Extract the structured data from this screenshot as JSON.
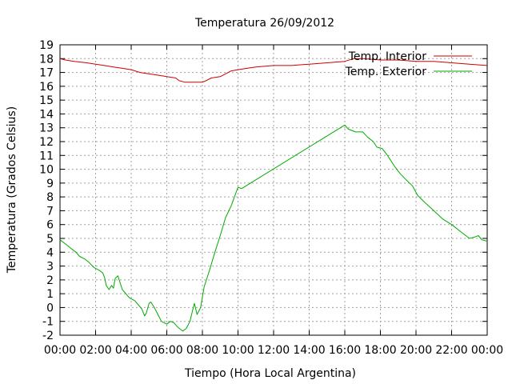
{
  "chart_data": {
    "type": "line",
    "title": "Temperatura 26/09/2012",
    "xlabel": "Tiempo (Hora Local Argentina)",
    "ylabel": "Temperatura (Grados Celsius)",
    "xlim": [
      0,
      24
    ],
    "ylim": [
      -2,
      19
    ],
    "grid": true,
    "legend_position": "top-right",
    "x_ticks": [
      {
        "value": 0,
        "label": "00:00"
      },
      {
        "value": 2,
        "label": "02:00"
      },
      {
        "value": 4,
        "label": "04:00"
      },
      {
        "value": 6,
        "label": "06:00"
      },
      {
        "value": 8,
        "label": "08:00"
      },
      {
        "value": 10,
        "label": "10:00"
      },
      {
        "value": 12,
        "label": "12:00"
      },
      {
        "value": 14,
        "label": "14:00"
      },
      {
        "value": 16,
        "label": "16:00"
      },
      {
        "value": 18,
        "label": "18:00"
      },
      {
        "value": 20,
        "label": "20:00"
      },
      {
        "value": 22,
        "label": "22:00"
      },
      {
        "value": 24,
        "label": "00:00"
      }
    ],
    "y_ticks": [
      -2,
      -1,
      0,
      1,
      2,
      3,
      4,
      5,
      6,
      7,
      8,
      9,
      10,
      11,
      12,
      13,
      14,
      15,
      16,
      17,
      18,
      19
    ],
    "series": [
      {
        "name": "Temp. Interior",
        "color": "#cc0000",
        "x": [
          0,
          0.3,
          0.8,
          1.5,
          2.0,
          2.5,
          3.0,
          3.5,
          4.0,
          4.5,
          5.0,
          5.5,
          6.0,
          6.5,
          6.7,
          7.0,
          7.5,
          8.0,
          8.2,
          8.5,
          9.0,
          9.3,
          9.6,
          10.0,
          10.5,
          11.0,
          12.0,
          13.0,
          14.0,
          15.0,
          16.0,
          16.5,
          17.0,
          18.0,
          19.0,
          20.0,
          21.0,
          22.0,
          23.0,
          24.0
        ],
        "y": [
          18.0,
          17.9,
          17.8,
          17.7,
          17.6,
          17.5,
          17.4,
          17.3,
          17.2,
          17.0,
          16.9,
          16.8,
          16.7,
          16.6,
          16.4,
          16.3,
          16.3,
          16.3,
          16.4,
          16.6,
          16.7,
          16.9,
          17.1,
          17.2,
          17.3,
          17.4,
          17.5,
          17.5,
          17.6,
          17.7,
          17.8,
          18.0,
          18.0,
          17.9,
          17.9,
          17.8,
          17.8,
          17.7,
          17.6,
          17.5
        ]
      },
      {
        "name": "Temp. Exterior",
        "color": "#00aa00",
        "x": [
          0,
          0.3,
          0.6,
          0.9,
          1.1,
          1.4,
          1.6,
          1.9,
          2.2,
          2.4,
          2.5,
          2.6,
          2.75,
          2.9,
          3.0,
          3.1,
          3.25,
          3.5,
          3.7,
          3.9,
          4.05,
          4.2,
          4.4,
          4.6,
          4.75,
          4.85,
          5.0,
          5.1,
          5.3,
          5.5,
          5.7,
          6.0,
          6.2,
          6.4,
          6.6,
          6.8,
          6.9,
          7.1,
          7.3,
          7.45,
          7.55,
          7.7,
          7.9,
          8.1,
          8.4,
          8.7,
          9.0,
          9.3,
          9.6,
          9.8,
          10.0,
          10.2,
          16.0,
          16.2,
          16.6,
          17.0,
          17.3,
          17.6,
          17.8,
          18.1,
          18.4,
          18.8,
          19.1,
          19.4,
          19.8,
          20.1,
          20.5,
          21.0,
          21.5,
          22.0,
          22.5,
          23.0,
          23.3,
          23.5,
          23.7,
          24.0
        ],
        "y": [
          4.9,
          4.6,
          4.3,
          4.0,
          3.7,
          3.5,
          3.3,
          2.9,
          2.7,
          2.5,
          2.2,
          1.6,
          1.3,
          1.6,
          1.4,
          2.1,
          2.3,
          1.3,
          1.0,
          0.7,
          0.6,
          0.5,
          0.2,
          -0.1,
          -0.6,
          -0.4,
          0.3,
          0.4,
          0.0,
          -0.5,
          -1.0,
          -1.2,
          -1.0,
          -1.1,
          -1.4,
          -1.6,
          -1.7,
          -1.5,
          -1.0,
          -0.2,
          0.3,
          -0.5,
          0.0,
          1.5,
          2.7,
          4.0,
          5.2,
          6.5,
          7.3,
          8.0,
          8.7,
          8.6,
          13.2,
          12.9,
          12.7,
          12.7,
          12.3,
          12.0,
          11.6,
          11.5,
          11.0,
          10.2,
          9.7,
          9.3,
          8.8,
          8.1,
          7.6,
          7.0,
          6.4,
          6.0,
          5.5,
          5.0,
          5.1,
          5.2,
          4.9,
          4.8
        ]
      }
    ]
  }
}
